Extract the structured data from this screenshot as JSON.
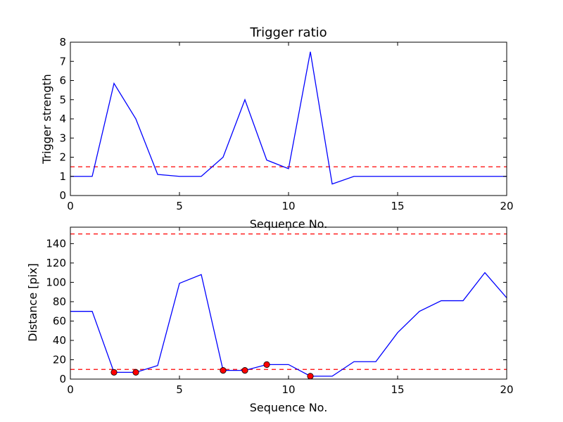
{
  "chart_data": [
    {
      "type": "line",
      "title": "Trigger ratio",
      "xlabel": "Sequence No.",
      "ylabel": "Trigger strength",
      "xlim": [
        0,
        20
      ],
      "ylim": [
        0,
        8
      ],
      "xticks": [
        "0",
        "5",
        "10",
        "15",
        "20"
      ],
      "yticks": [
        "0",
        "1",
        "2",
        "3",
        "4",
        "5",
        "6",
        "7",
        "8"
      ],
      "grid": false,
      "x": [
        0,
        1,
        2,
        3,
        4,
        5,
        6,
        7,
        8,
        9,
        10,
        11,
        12,
        13,
        14,
        15,
        16,
        17,
        18,
        19,
        20
      ],
      "series": [
        {
          "values": [
            1.0,
            1.0,
            5.85,
            4.0,
            1.1,
            1.0,
            1.0,
            2.0,
            5.0,
            1.85,
            1.4,
            7.5,
            0.6,
            1.0,
            1.0,
            1.0,
            1.0,
            1.0,
            1.0,
            1.0,
            1.0
          ],
          "color": "#0000ff",
          "style": "solid"
        }
      ],
      "threshold_lines": [
        {
          "y": 1.5,
          "color": "#ff0000",
          "style": "dashed"
        }
      ]
    },
    {
      "type": "line",
      "title": "",
      "xlabel": "Sequence No.",
      "ylabel": "Distance [pix]",
      "xlim": [
        0,
        20
      ],
      "ylim": [
        0,
        157
      ],
      "xticks": [
        "0",
        "5",
        "10",
        "15",
        "20"
      ],
      "yticks": [
        "0",
        "20",
        "40",
        "60",
        "80",
        "100",
        "120",
        "140"
      ],
      "grid": false,
      "x": [
        0,
        1,
        2,
        3,
        4,
        5,
        6,
        7,
        8,
        9,
        10,
        11,
        12,
        13,
        14,
        15,
        16,
        17,
        18,
        19,
        20
      ],
      "series": [
        {
          "values": [
            70,
            70,
            7,
            7,
            14,
            99,
            108,
            9,
            9,
            15,
            15,
            3,
            3,
            18,
            18,
            48,
            70,
            81,
            81,
            110,
            84
          ],
          "color": "#0000ff",
          "style": "solid"
        }
      ],
      "markers": {
        "x": [
          2,
          3,
          7,
          8,
          9,
          11
        ],
        "y": [
          7,
          7,
          9,
          9,
          15,
          3
        ],
        "color": "#ff0000"
      },
      "threshold_lines": [
        {
          "y": 150,
          "color": "#ff0000",
          "style": "dashed"
        },
        {
          "y": 10,
          "color": "#ff0000",
          "style": "dashed"
        }
      ]
    }
  ]
}
